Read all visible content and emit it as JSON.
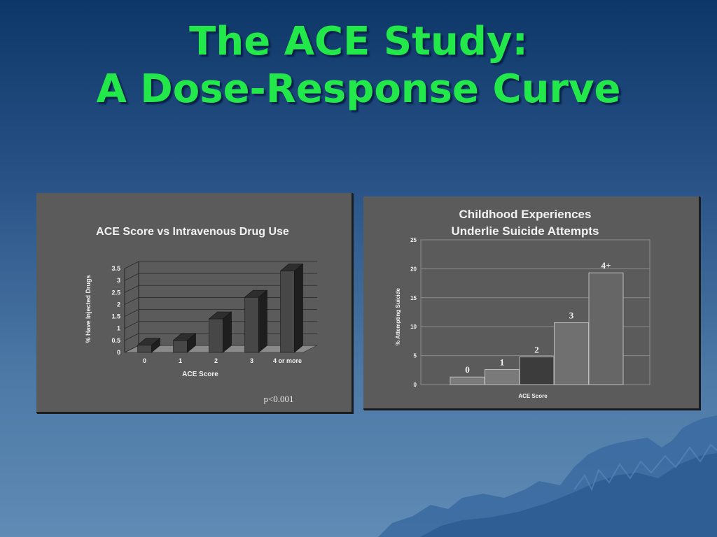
{
  "slide": {
    "title_line1": "The ACE Study:",
    "title_line2": "A Dose-Response Curve",
    "colors": {
      "title": "#22e84a",
      "background_top": "#0d3768",
      "background_bottom": "#5f8bb5",
      "panel": "#5b5b5b"
    }
  },
  "chart_data": [
    {
      "type": "bar",
      "title": "ACE Score vs Intravenous Drug Use",
      "xlabel": "ACE Score",
      "ylabel": "% Have Injected Drugs",
      "categories": [
        "0",
        "1",
        "2",
        "3",
        "4 or more"
      ],
      "values": [
        0.3,
        0.5,
        1.4,
        2.3,
        3.4
      ],
      "ylim": [
        0,
        3.5
      ],
      "yticks": [
        "0",
        "0.5",
        "1",
        "1.5",
        "2",
        "2.5",
        "3",
        "3.5"
      ],
      "grid": true,
      "style": "3d",
      "annotation": "p<0.001"
    },
    {
      "type": "bar",
      "title_line1": "Childhood Experiences",
      "title_line2": "Underlie Suicide Attempts",
      "xlabel": "ACE Score",
      "ylabel": "% Attempting Suicide",
      "categories": [
        "0",
        "1",
        "2",
        "3",
        "4+"
      ],
      "values": [
        1.3,
        2.6,
        4.8,
        10.7,
        19.3
      ],
      "ylim": [
        0,
        25
      ],
      "yticks": [
        "0",
        "5",
        "10",
        "15",
        "20",
        "25"
      ],
      "grid": true,
      "bar_colors": [
        "#7a7a7a",
        "#7a7a7a",
        "#3c3c3c",
        "#707070",
        "#666666"
      ]
    }
  ]
}
